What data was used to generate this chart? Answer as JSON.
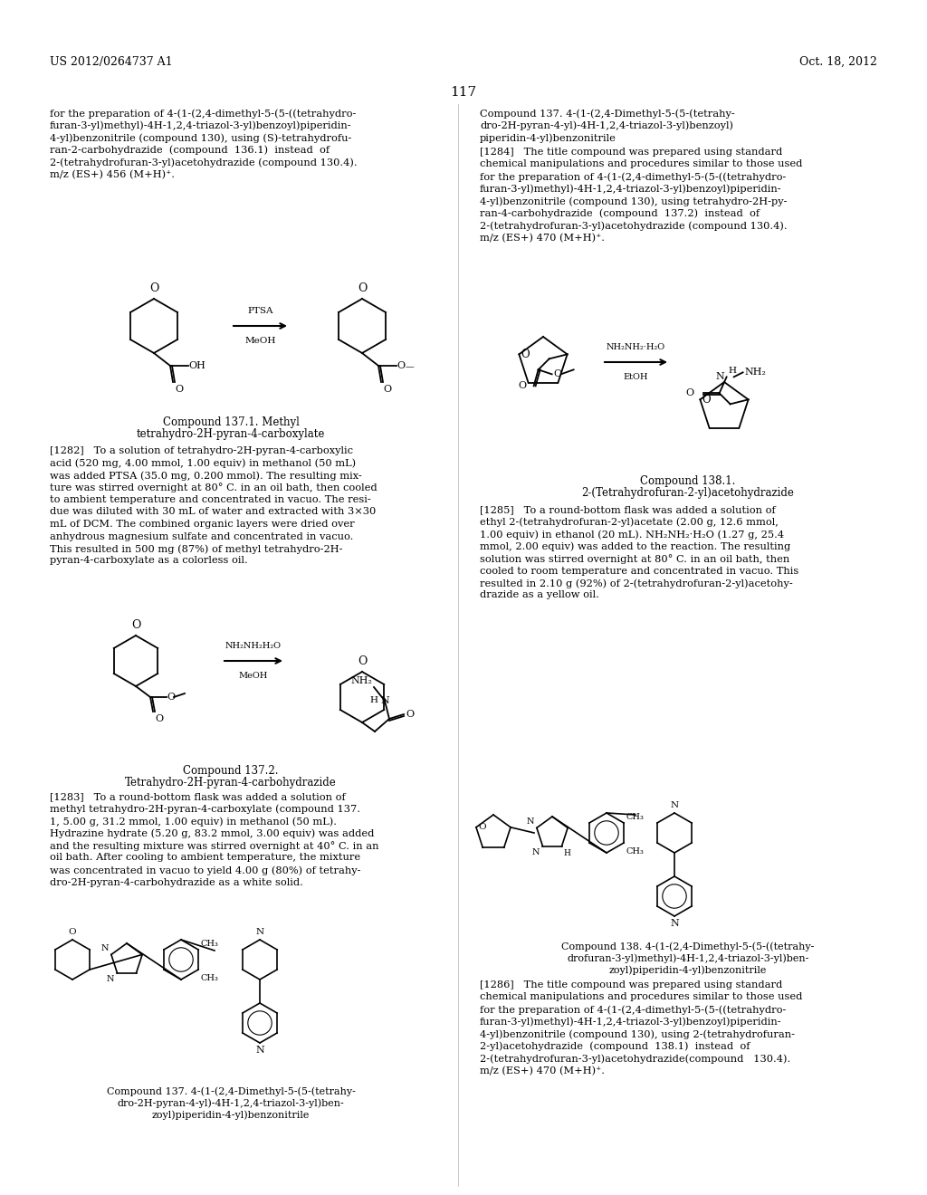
{
  "page_number": "117",
  "header_left": "US 2012/0264737 A1",
  "header_right": "Oct. 18, 2012",
  "background_color": "#ffffff",
  "text_color": "#000000",
  "font_size_body": 8.5,
  "font_size_header": 9,
  "font_size_page_num": 12
}
